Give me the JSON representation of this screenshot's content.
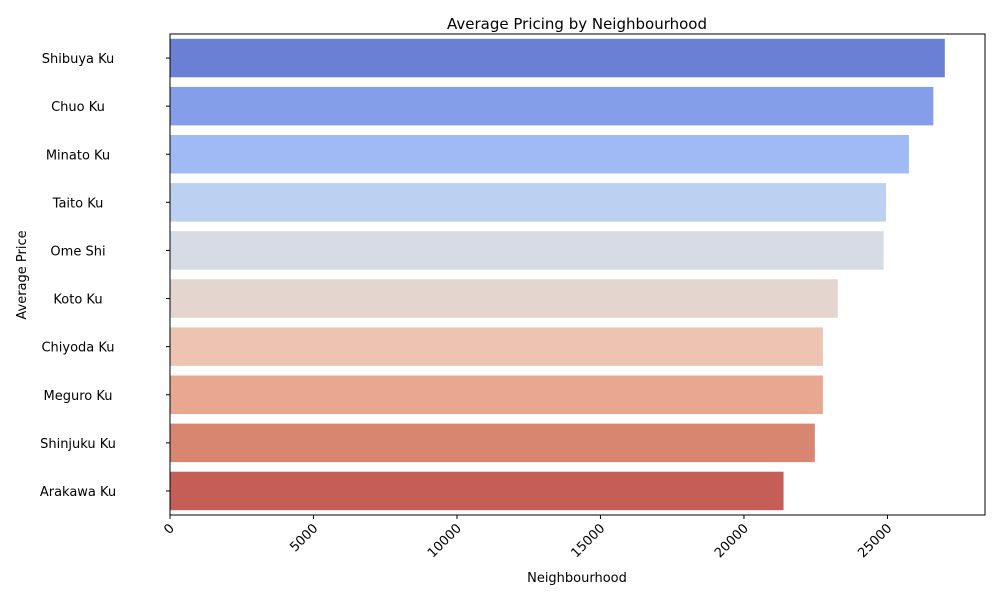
{
  "chart_data": {
    "type": "bar",
    "orientation": "horizontal",
    "title": "Average Pricing by Neighbourhood",
    "xlabel": "Neighbourhood",
    "ylabel": "Average Price",
    "xlim": [
      0,
      28400
    ],
    "xticks": [
      0,
      5000,
      10000,
      15000,
      20000,
      25000
    ],
    "categories": [
      "Shibuya Ku",
      "Chuo Ku",
      "Minato Ku",
      "Taito Ku",
      "Ome Shi",
      "Koto Ku",
      "Chiyoda Ku",
      "Meguro Ku",
      "Shinjuku Ku",
      "Arakawa Ku"
    ],
    "values": [
      27000,
      26600,
      25750,
      24950,
      24870,
      23270,
      22750,
      22750,
      22470,
      21380
    ],
    "colors": [
      "#6a80d4",
      "#849eea",
      "#a0baf6",
      "#bcd0f2",
      "#d6dbe6",
      "#e4d6ce",
      "#ecc4b1",
      "#e8a78e",
      "#d98671",
      "#c45e56"
    ],
    "grid": false,
    "legend": "none"
  }
}
